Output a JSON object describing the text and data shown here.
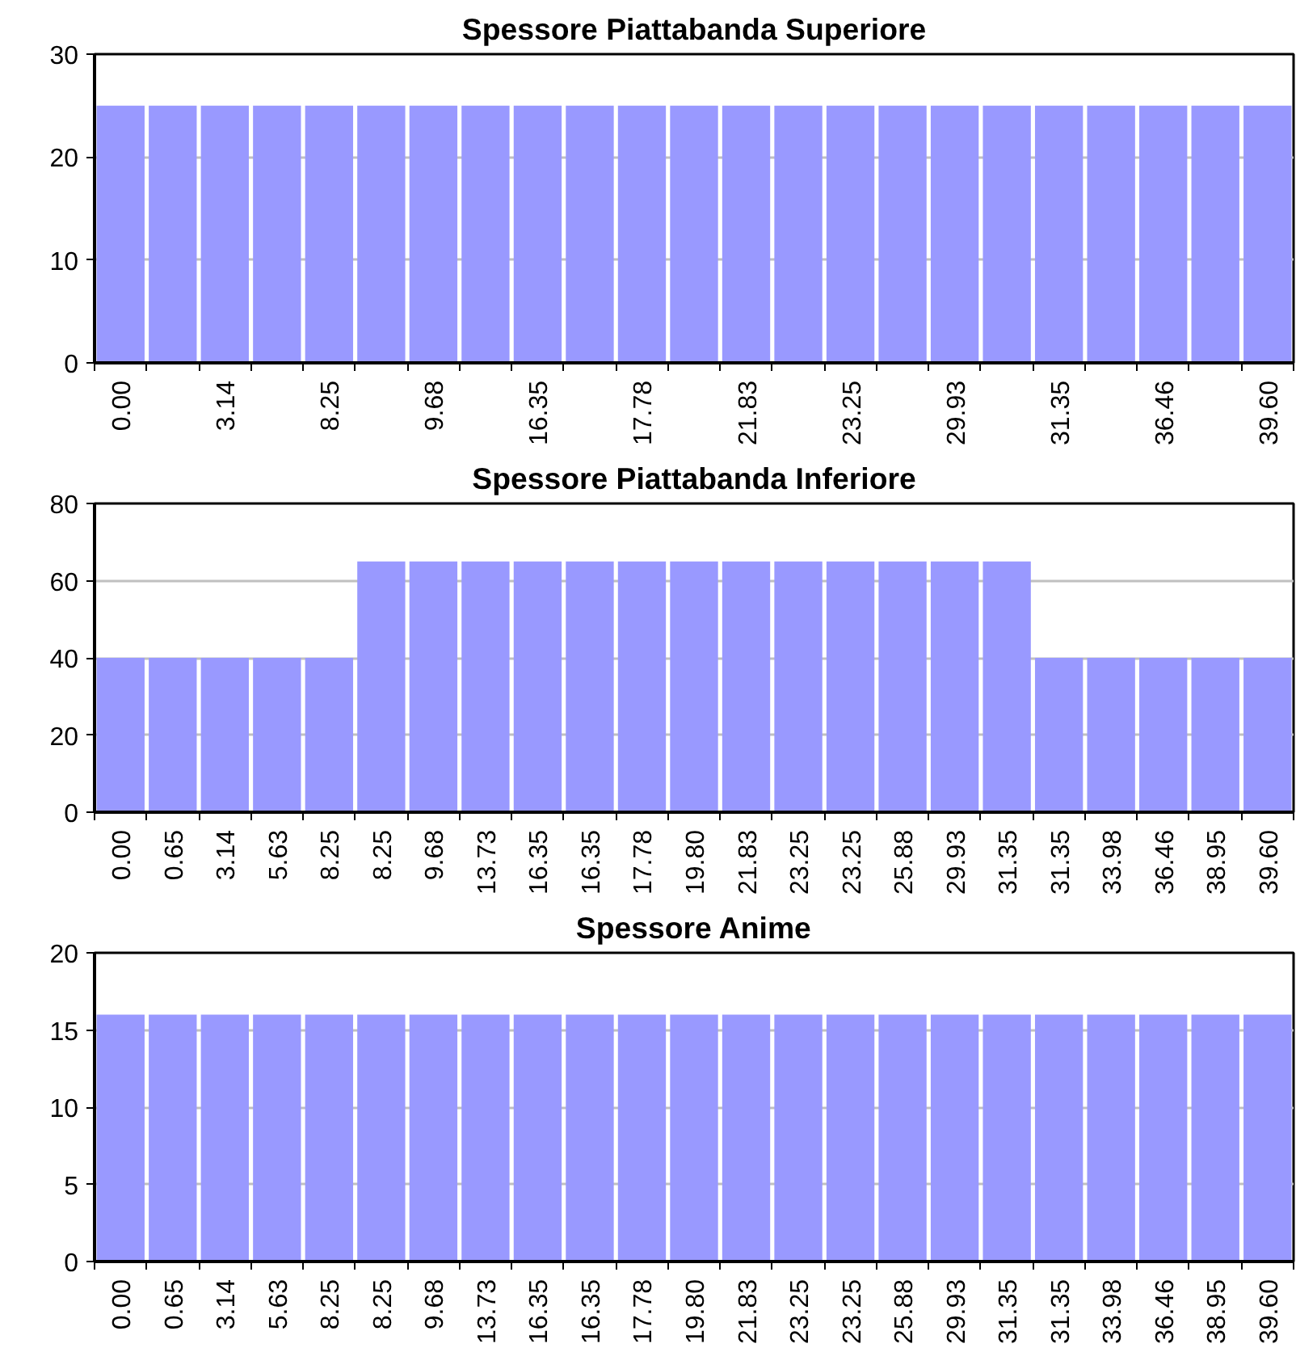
{
  "chart_data": [
    {
      "type": "bar",
      "title": "Spessore Piattabanda Superiore",
      "categories": [
        "0.00",
        null,
        "3.14",
        null,
        "8.25",
        null,
        "9.68",
        null,
        "16.35",
        null,
        "17.78",
        null,
        "21.83",
        null,
        "23.25",
        null,
        "29.93",
        null,
        "31.35",
        null,
        "36.46",
        null,
        "39.60"
      ],
      "values": [
        25,
        25,
        25,
        25,
        25,
        25,
        25,
        25,
        25,
        25,
        25,
        25,
        25,
        25,
        25,
        25,
        25,
        25,
        25,
        25,
        25,
        25,
        25
      ],
      "color": "#9999ff",
      "ylim": [
        0,
        30
      ],
      "yticks": [
        0,
        10,
        20,
        30
      ],
      "grid": "y"
    },
    {
      "type": "bar",
      "title": "Spessore Piattabanda Inferiore",
      "categories": [
        "0.00",
        "0.65",
        "3.14",
        "5.63",
        "8.25",
        "8.25",
        "9.68",
        "13.73",
        "16.35",
        "16.35",
        "17.78",
        "19.80",
        "21.83",
        "23.25",
        "23.25",
        "25.88",
        "29.93",
        "31.35",
        "31.35",
        "33.98",
        "36.46",
        "38.95",
        "39.60"
      ],
      "values": [
        40,
        40,
        40,
        40,
        40,
        65,
        65,
        65,
        65,
        65,
        65,
        65,
        65,
        65,
        65,
        65,
        65,
        65,
        40,
        40,
        40,
        40,
        40
      ],
      "color": "#9999ff",
      "ylim": [
        0,
        80
      ],
      "yticks": [
        0,
        20,
        40,
        60,
        80
      ],
      "grid": "y"
    },
    {
      "type": "bar",
      "title": "Spessore Anime",
      "categories": [
        "0.00",
        "0.65",
        "3.14",
        "5.63",
        "8.25",
        "8.25",
        "9.68",
        "13.73",
        "16.35",
        "16.35",
        "17.78",
        "19.80",
        "21.83",
        "23.25",
        "23.25",
        "25.88",
        "29.93",
        "31.35",
        "31.35",
        "33.98",
        "36.46",
        "38.95",
        "39.60"
      ],
      "values": [
        16,
        16,
        16,
        16,
        16,
        16,
        16,
        16,
        16,
        16,
        16,
        16,
        16,
        16,
        16,
        16,
        16,
        16,
        16,
        16,
        16,
        16,
        16
      ],
      "color": "#9999ff",
      "ylim": [
        0,
        20
      ],
      "yticks": [
        0,
        5,
        10,
        15,
        20
      ],
      "grid": "y"
    }
  ]
}
